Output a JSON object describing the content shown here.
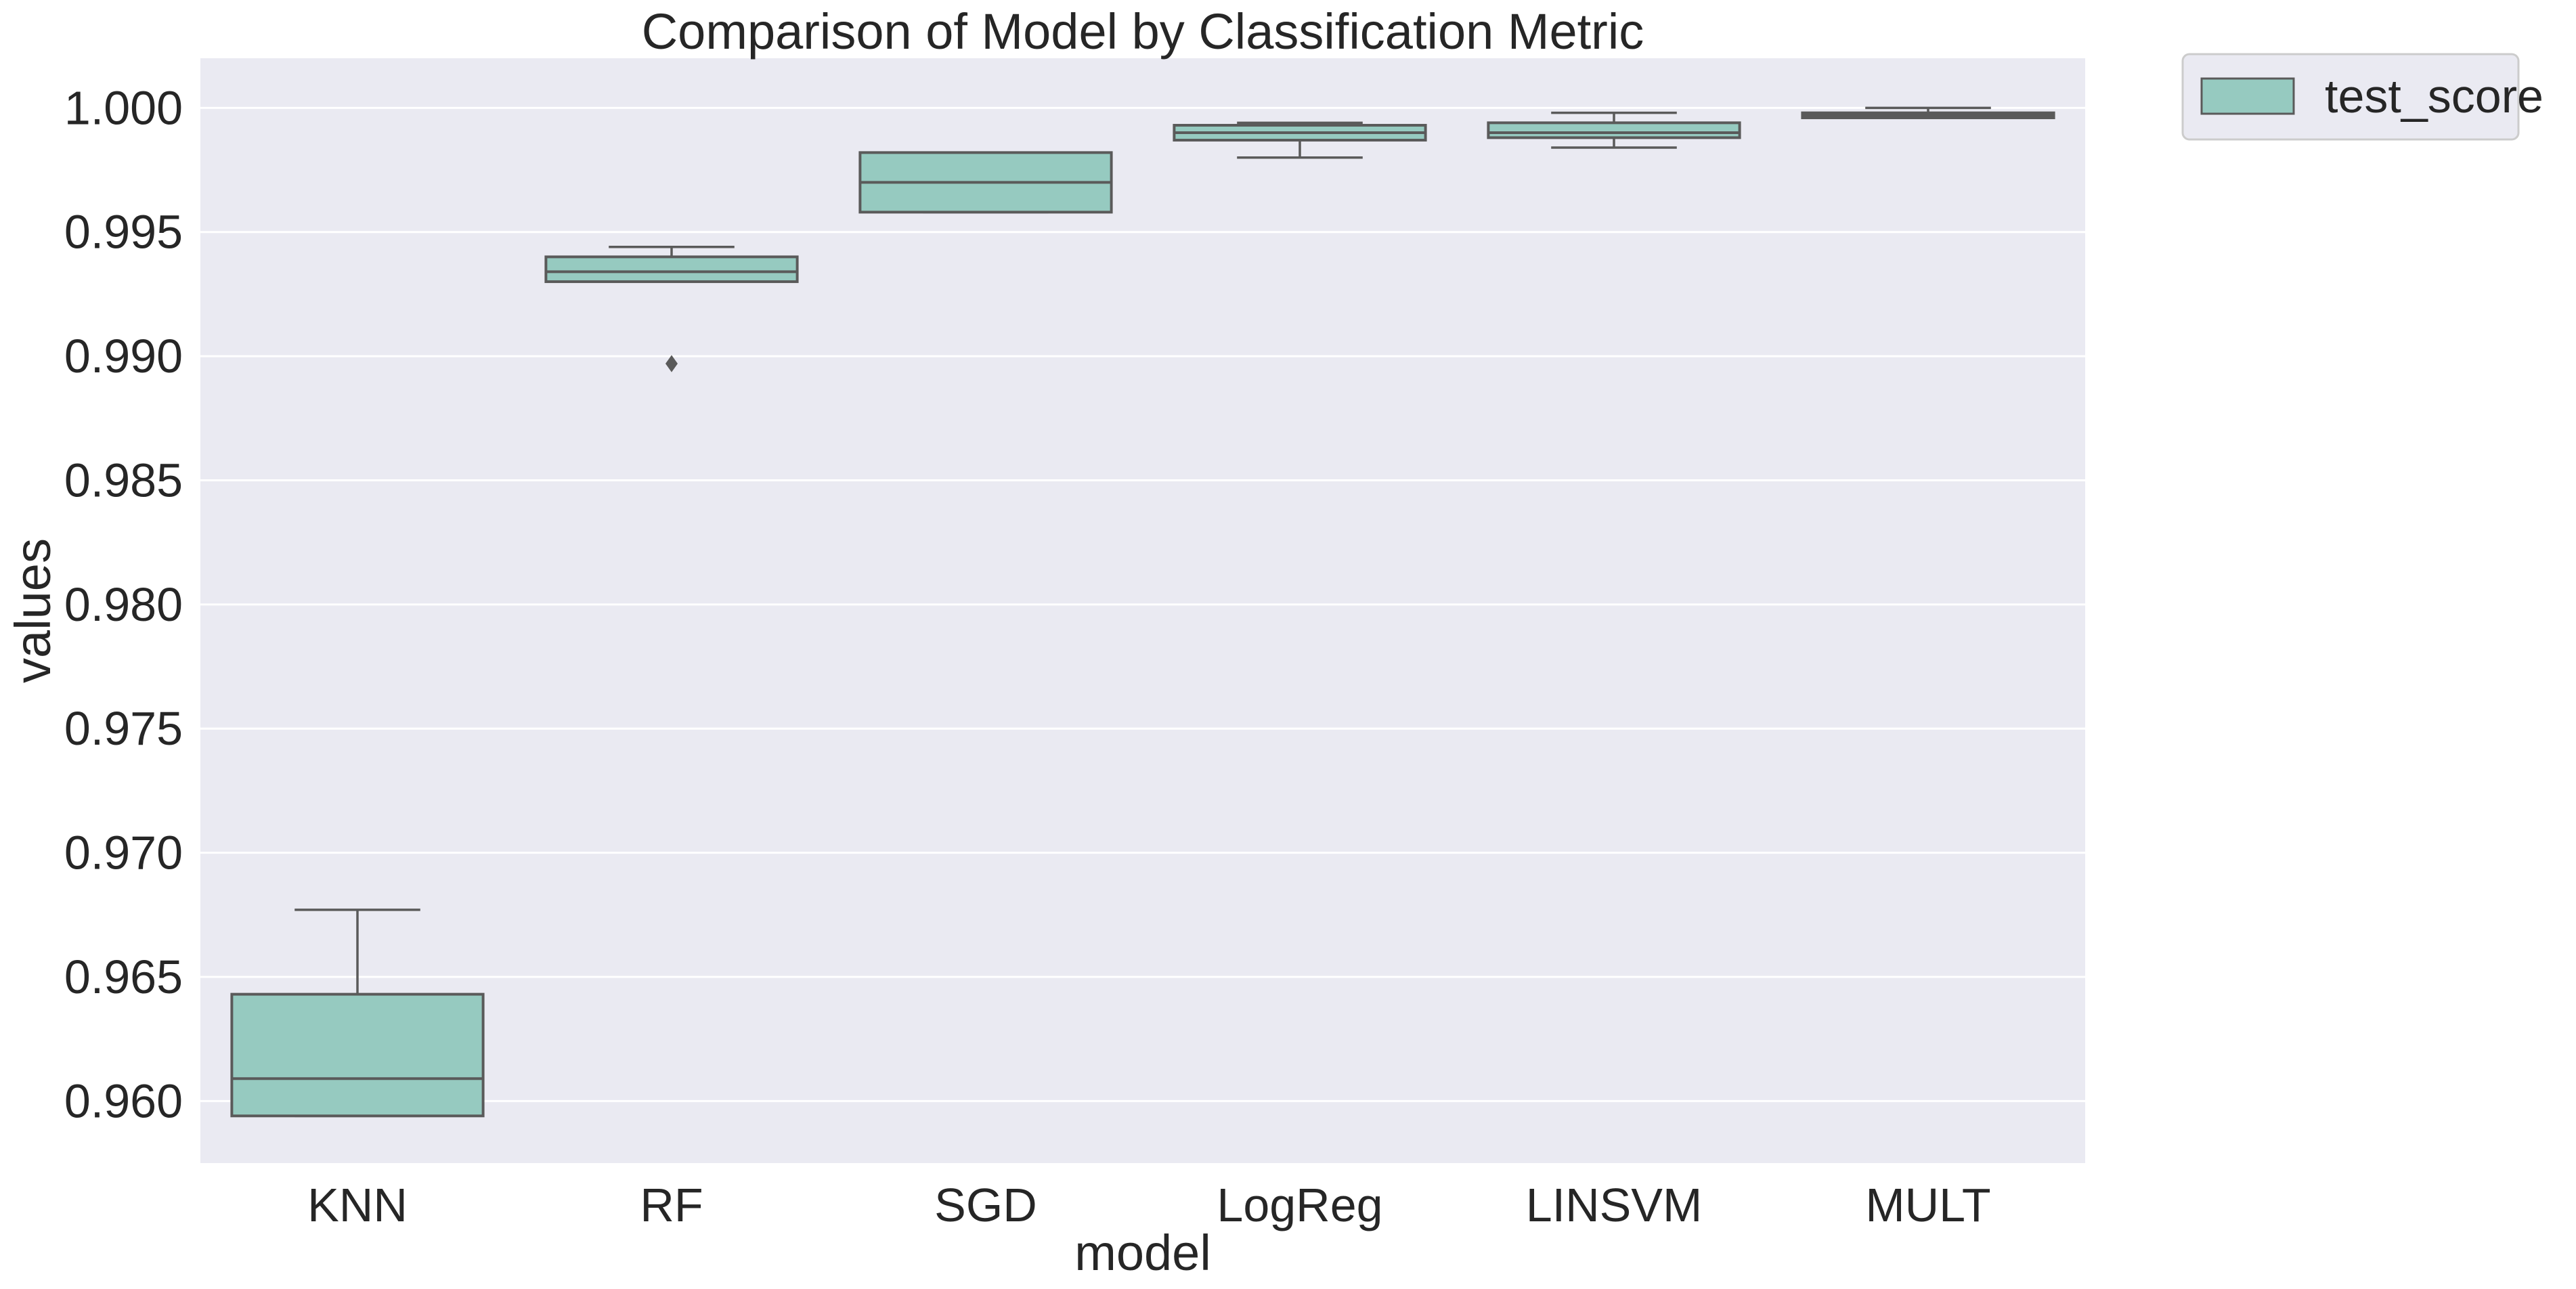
{
  "chart_data": {
    "type": "box",
    "title": "Comparison of Model by Classification Metric",
    "xlabel": "model",
    "ylabel": "values",
    "ylim": [
      0.9575,
      1.002
    ],
    "yticks": [
      0.96,
      0.965,
      0.97,
      0.975,
      0.98,
      0.985,
      0.99,
      0.995,
      1.0
    ],
    "ytick_labels": [
      "0.960",
      "0.965",
      "0.970",
      "0.975",
      "0.980",
      "0.985",
      "0.990",
      "0.995",
      "1.000"
    ],
    "grid": true,
    "legend": {
      "placement": "outside-top-right",
      "entries": [
        "test_score"
      ]
    },
    "categories": [
      "KNN",
      "RF",
      "SGD",
      "LogReg",
      "LINSVM",
      "MULT"
    ],
    "series": [
      {
        "name": "test_score",
        "color": "#96cac0",
        "boxes": [
          {
            "category": "KNN",
            "whislo": 0.9594,
            "q1": 0.9594,
            "med": 0.9609,
            "q3": 0.9643,
            "whishi": 0.9677,
            "fliers": []
          },
          {
            "category": "RF",
            "whislo": 0.993,
            "q1": 0.993,
            "med": 0.9934,
            "q3": 0.994,
            "whishi": 0.9944,
            "fliers": [
              0.9897
            ]
          },
          {
            "category": "SGD",
            "whislo": 0.9958,
            "q1": 0.9958,
            "med": 0.997,
            "q3": 0.9982,
            "whishi": 0.9982,
            "fliers": []
          },
          {
            "category": "LogReg",
            "whislo": 0.998,
            "q1": 0.9987,
            "med": 0.999,
            "q3": 0.9993,
            "whishi": 0.9994,
            "fliers": []
          },
          {
            "category": "LINSVM",
            "whislo": 0.9984,
            "q1": 0.9988,
            "med": 0.999,
            "q3": 0.9994,
            "whishi": 0.9998,
            "fliers": []
          },
          {
            "category": "MULT",
            "whislo": 0.9996,
            "q1": 0.9996,
            "med": 0.9997,
            "q3": 0.9998,
            "whishi": 1.0,
            "fliers": []
          }
        ]
      }
    ]
  },
  "colors": {
    "panel_bg": "#eaeaf2",
    "grid": "#ffffff",
    "box_fill": "#96cac0",
    "box_edge": "#5a5a5a",
    "text": "#262626"
  }
}
